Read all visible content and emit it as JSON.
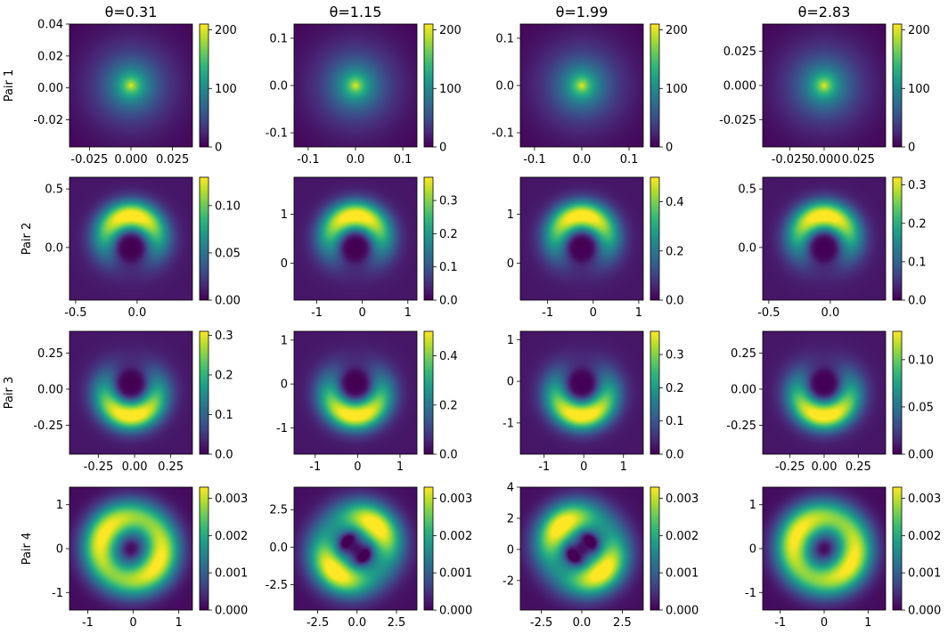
{
  "figure": {
    "column_titles": [
      "θ=0.31",
      "θ=1.15",
      "θ=1.99",
      "θ=2.83"
    ],
    "row_labels": [
      "Pair 1",
      "Pair 2",
      "Pair 3",
      "Pair 4"
    ],
    "colormap": "viridis"
  },
  "chart_data": [
    {
      "type": "heatmap",
      "row": "Pair 1",
      "title": "θ=0.31",
      "pattern": "peak",
      "theta": 0.31,
      "xlim": [
        -0.037,
        0.037
      ],
      "ylim": [
        -0.037,
        0.04
      ],
      "xticks": [
        -0.025,
        0.0,
        0.025
      ],
      "xticklabels": [
        "-0.025",
        "0.000",
        "0.025"
      ],
      "yticks": [
        -0.02,
        0.0,
        0.02,
        0.04
      ],
      "yticklabels": [
        "-0.02",
        "0.00",
        "0.02",
        "0.04"
      ],
      "clim": [
        0,
        210
      ],
      "cticks": [
        0,
        100,
        200
      ],
      "cticklabels": [
        "0",
        "100",
        "200"
      ]
    },
    {
      "type": "heatmap",
      "row": "Pair 1",
      "title": "θ=1.15",
      "pattern": "peak",
      "theta": 1.15,
      "xlim": [
        -0.13,
        0.13
      ],
      "ylim": [
        -0.13,
        0.13
      ],
      "xticks": [
        -0.1,
        0.0,
        0.1
      ],
      "xticklabels": [
        "-0.1",
        "0.0",
        "0.1"
      ],
      "yticks": [
        -0.1,
        0.0,
        0.1
      ],
      "yticklabels": [
        "-0.1",
        "0.0",
        "0.1"
      ],
      "clim": [
        0,
        210
      ],
      "cticks": [
        0,
        100,
        200
      ],
      "cticklabels": [
        "0",
        "100",
        "200"
      ]
    },
    {
      "type": "heatmap",
      "row": "Pair 1",
      "title": "θ=1.99",
      "pattern": "peak",
      "theta": 1.99,
      "xlim": [
        -0.13,
        0.13
      ],
      "ylim": [
        -0.13,
        0.13
      ],
      "xticks": [
        -0.1,
        0.0,
        0.1
      ],
      "xticklabels": [
        "-0.1",
        "0.0",
        "0.1"
      ],
      "yticks": [
        -0.1,
        0.0,
        0.1
      ],
      "yticklabels": [
        "-0.1",
        "0.0",
        "0.1"
      ],
      "clim": [
        0,
        210
      ],
      "cticks": [
        0,
        100,
        200
      ],
      "cticklabels": [
        "0",
        "100",
        "200"
      ]
    },
    {
      "type": "heatmap",
      "row": "Pair 1",
      "title": "θ=2.83",
      "pattern": "peak",
      "theta": 2.83,
      "xlim": [
        -0.045,
        0.045
      ],
      "ylim": [
        -0.045,
        0.045
      ],
      "xticks": [
        -0.025,
        0.0,
        0.025
      ],
      "xticklabels": [
        "-0.025",
        "0.000",
        "0.025"
      ],
      "yticks": [
        -0.025,
        0.0,
        0.025
      ],
      "yticklabels": [
        "-0.025",
        "0.000",
        "0.025"
      ],
      "clim": [
        0,
        210
      ],
      "cticks": [
        0,
        100,
        200
      ],
      "cticklabels": [
        "0",
        "100",
        "200"
      ]
    },
    {
      "type": "heatmap",
      "row": "Pair 2",
      "title": "θ=0.31",
      "pattern": "crescent_up",
      "theta": 0.31,
      "xlim": [
        -0.55,
        0.45
      ],
      "ylim": [
        -0.45,
        0.6
      ],
      "xticks": [
        -0.5,
        0.0
      ],
      "xticklabels": [
        "-0.5",
        "0.0"
      ],
      "yticks": [
        0.0,
        0.5
      ],
      "yticklabels": [
        "0.0",
        "0.5"
      ],
      "clim": [
        0,
        0.13
      ],
      "cticks": [
        0.0,
        0.05,
        0.1
      ],
      "cticklabels": [
        "0.00",
        "0.05",
        "0.10"
      ]
    },
    {
      "type": "heatmap",
      "row": "Pair 2",
      "title": "θ=1.15",
      "pattern": "crescent_up",
      "theta": 1.15,
      "xlim": [
        -1.5,
        1.2
      ],
      "ylim": [
        -0.75,
        1.75
      ],
      "xticks": [
        -1,
        0,
        1
      ],
      "xticklabels": [
        "-1",
        "0",
        "1"
      ],
      "yticks": [
        0,
        1
      ],
      "yticklabels": [
        "0",
        "1"
      ],
      "clim": [
        0,
        0.37
      ],
      "cticks": [
        0.0,
        0.1,
        0.2,
        0.3
      ],
      "cticklabels": [
        "0.0",
        "0.1",
        "0.2",
        "0.3"
      ]
    },
    {
      "type": "heatmap",
      "row": "Pair 2",
      "title": "θ=1.99",
      "pattern": "crescent_up",
      "theta": 1.99,
      "xlim": [
        -1.6,
        1.1
      ],
      "ylim": [
        -0.75,
        1.75
      ],
      "xticks": [
        -1,
        0,
        1
      ],
      "xticklabels": [
        "-1",
        "0",
        "1"
      ],
      "yticks": [
        0,
        1
      ],
      "yticklabels": [
        "0",
        "1"
      ],
      "clim": [
        0,
        0.5
      ],
      "cticks": [
        0.0,
        0.2,
        0.4
      ],
      "cticklabels": [
        "0.0",
        "0.2",
        "0.4"
      ]
    },
    {
      "type": "heatmap",
      "row": "Pair 2",
      "title": "θ=2.83",
      "pattern": "crescent_up",
      "theta": 2.83,
      "xlim": [
        -0.55,
        0.45
      ],
      "ylim": [
        -0.45,
        0.6
      ],
      "xticks": [
        -0.5,
        0.0
      ],
      "xticklabels": [
        "-0.5",
        "0.0"
      ],
      "yticks": [
        0.0,
        0.5
      ],
      "yticklabels": [
        "0.0",
        "0.5"
      ],
      "clim": [
        0,
        0.32
      ],
      "cticks": [
        0.0,
        0.1,
        0.2,
        0.3
      ],
      "cticklabels": [
        "0.0",
        "0.1",
        "0.2",
        "0.3"
      ]
    },
    {
      "type": "heatmap",
      "row": "Pair 3",
      "title": "θ=0.31",
      "pattern": "crescent_down",
      "theta": 0.31,
      "xlim": [
        -0.45,
        0.4
      ],
      "ylim": [
        -0.45,
        0.4
      ],
      "xticks": [
        -0.25,
        0.0,
        0.25
      ],
      "xticklabels": [
        "-0.25",
        "0.00",
        "0.25"
      ],
      "yticks": [
        -0.25,
        0.0,
        0.25
      ],
      "yticklabels": [
        "-0.25",
        "0.00",
        "0.25"
      ],
      "clim": [
        0,
        0.31
      ],
      "cticks": [
        0.0,
        0.1,
        0.2,
        0.3
      ],
      "cticklabels": [
        "0.0",
        "0.1",
        "0.2",
        "0.3"
      ]
    },
    {
      "type": "heatmap",
      "row": "Pair 3",
      "title": "θ=1.15",
      "pattern": "crescent_down",
      "theta": 1.15,
      "xlim": [
        -1.5,
        1.4
      ],
      "ylim": [
        -1.6,
        1.2
      ],
      "xticks": [
        -1,
        0,
        1
      ],
      "xticklabels": [
        "-1",
        "0",
        "1"
      ],
      "yticks": [
        -1,
        0,
        1
      ],
      "yticklabels": [
        "-1",
        "0",
        "1"
      ],
      "clim": [
        0,
        0.5
      ],
      "cticks": [
        0.0,
        0.2,
        0.4
      ],
      "cticklabels": [
        "0.0",
        "0.2",
        "0.4"
      ]
    },
    {
      "type": "heatmap",
      "row": "Pair 3",
      "title": "θ=1.99",
      "pattern": "crescent_down",
      "theta": 1.99,
      "xlim": [
        -1.6,
        1.5
      ],
      "ylim": [
        -1.75,
        1.2
      ],
      "xticks": [
        -1,
        0,
        1
      ],
      "xticklabels": [
        "-1",
        "0",
        "1"
      ],
      "yticks": [
        -1,
        0,
        1
      ],
      "yticklabels": [
        "-1",
        "0",
        "1"
      ],
      "clim": [
        0,
        0.37
      ],
      "cticks": [
        0.0,
        0.1,
        0.2,
        0.3
      ],
      "cticklabels": [
        "0.0",
        "0.1",
        "0.2",
        "0.3"
      ]
    },
    {
      "type": "heatmap",
      "row": "Pair 3",
      "title": "θ=2.83",
      "pattern": "crescent_down",
      "theta": 2.83,
      "xlim": [
        -0.45,
        0.45
      ],
      "ylim": [
        -0.45,
        0.4
      ],
      "xticks": [
        -0.25,
        0.0,
        0.25
      ],
      "xticklabels": [
        "-0.25",
        "0.00",
        "0.25"
      ],
      "yticks": [
        -0.25,
        0.0,
        0.25
      ],
      "yticklabels": [
        "-0.25",
        "0.00",
        "0.25"
      ],
      "clim": [
        0,
        0.13
      ],
      "cticks": [
        0.0,
        0.05,
        0.1
      ],
      "cticklabels": [
        "0.00",
        "0.05",
        "0.10"
      ]
    },
    {
      "type": "heatmap",
      "row": "Pair 4",
      "title": "θ=0.31",
      "pattern": "ring",
      "theta": 0.31,
      "xlim": [
        -1.4,
        1.3
      ],
      "ylim": [
        -1.4,
        1.4
      ],
      "xticks": [
        -1,
        0,
        1
      ],
      "xticklabels": [
        "-1",
        "0",
        "1"
      ],
      "yticks": [
        -1,
        0,
        1
      ],
      "yticklabels": [
        "-1",
        "0",
        "1"
      ],
      "clim": [
        0,
        0.0033
      ],
      "cticks": [
        0.0,
        0.001,
        0.002,
        0.003
      ],
      "cticklabels": [
        "0.000",
        "0.001",
        "0.002",
        "0.003"
      ]
    },
    {
      "type": "heatmap",
      "row": "Pair 4",
      "title": "θ=1.15",
      "pattern": "lobes",
      "theta": 1.15,
      "xlim": [
        -4.0,
        3.8
      ],
      "ylim": [
        -4.2,
        4.0
      ],
      "xticks": [
        -2.5,
        0.0,
        2.5
      ],
      "xticklabels": [
        "-2.5",
        "0.0",
        "2.5"
      ],
      "yticks": [
        -2.5,
        0.0,
        2.5
      ],
      "yticklabels": [
        "-2.5",
        "0.0",
        "2.5"
      ],
      "clim": [
        0,
        0.0033
      ],
      "cticks": [
        0.0,
        0.001,
        0.002,
        0.003
      ],
      "cticklabels": [
        "0.000",
        "0.001",
        "0.002",
        "0.003"
      ]
    },
    {
      "type": "heatmap",
      "row": "Pair 4",
      "title": "θ=1.99",
      "pattern": "lobes",
      "theta": 1.99,
      "xlim": [
        -3.8,
        3.8
      ],
      "ylim": [
        -3.9,
        4.0
      ],
      "xticks": [
        -2.5,
        0.0,
        2.5
      ],
      "xticklabels": [
        "-2.5",
        "0.0",
        "2.5"
      ],
      "yticks": [
        -2,
        0,
        2,
        4
      ],
      "yticklabels": [
        "-2",
        "0",
        "2",
        "4"
      ],
      "clim": [
        0,
        0.0033
      ],
      "cticks": [
        0.0,
        0.001,
        0.002,
        0.003
      ],
      "cticklabels": [
        "0.000",
        "0.001",
        "0.002",
        "0.003"
      ]
    },
    {
      "type": "heatmap",
      "row": "Pair 4",
      "title": "θ=2.83",
      "pattern": "ring",
      "theta": 2.83,
      "xlim": [
        -1.4,
        1.4
      ],
      "ylim": [
        -1.4,
        1.4
      ],
      "xticks": [
        -1,
        0,
        1
      ],
      "xticklabels": [
        "-1",
        "0",
        "1"
      ],
      "yticks": [
        -1,
        0,
        1
      ],
      "yticklabels": [
        "-1",
        "0",
        "1"
      ],
      "clim": [
        0,
        0.0033
      ],
      "cticks": [
        0.0,
        0.001,
        0.002,
        0.003
      ],
      "cticklabels": [
        "0.000",
        "0.001",
        "0.002",
        "0.003"
      ]
    }
  ]
}
